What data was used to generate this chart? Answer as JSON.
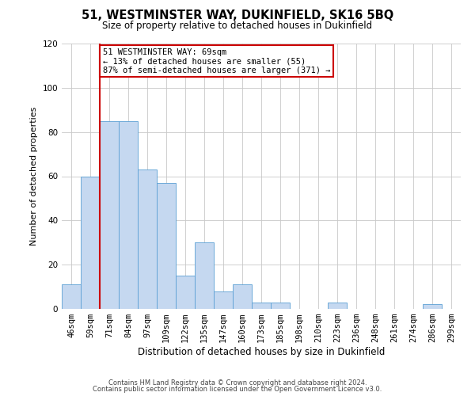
{
  "title": "51, WESTMINSTER WAY, DUKINFIELD, SK16 5BQ",
  "subtitle": "Size of property relative to detached houses in Dukinfield",
  "xlabel": "Distribution of detached houses by size in Dukinfield",
  "ylabel": "Number of detached properties",
  "bin_labels": [
    "46sqm",
    "59sqm",
    "71sqm",
    "84sqm",
    "97sqm",
    "109sqm",
    "122sqm",
    "135sqm",
    "147sqm",
    "160sqm",
    "173sqm",
    "185sqm",
    "198sqm",
    "210sqm",
    "223sqm",
    "236sqm",
    "248sqm",
    "261sqm",
    "274sqm",
    "286sqm",
    "299sqm"
  ],
  "bar_heights": [
    11,
    60,
    85,
    85,
    63,
    57,
    15,
    30,
    8,
    11,
    3,
    3,
    0,
    0,
    3,
    0,
    0,
    0,
    0,
    2,
    0
  ],
  "bar_color": "#c5d8f0",
  "bar_edge_color": "#5a9fd4",
  "vline_x_index": 2,
  "vline_color": "#cc0000",
  "annotation_text": "51 WESTMINSTER WAY: 69sqm\n← 13% of detached houses are smaller (55)\n87% of semi-detached houses are larger (371) →",
  "annotation_box_color": "#ffffff",
  "annotation_box_edge": "#cc0000",
  "ylim": [
    0,
    120
  ],
  "yticks": [
    0,
    20,
    40,
    60,
    80,
    100,
    120
  ],
  "footer_line1": "Contains HM Land Registry data © Crown copyright and database right 2024.",
  "footer_line2": "Contains public sector information licensed under the Open Government Licence v3.0.",
  "background_color": "#ffffff",
  "grid_color": "#c8c8c8",
  "title_fontsize": 10.5,
  "subtitle_fontsize": 8.5,
  "xlabel_fontsize": 8.5,
  "ylabel_fontsize": 8,
  "tick_fontsize": 7.5,
  "ann_fontsize": 7.5,
  "footer_fontsize": 6
}
